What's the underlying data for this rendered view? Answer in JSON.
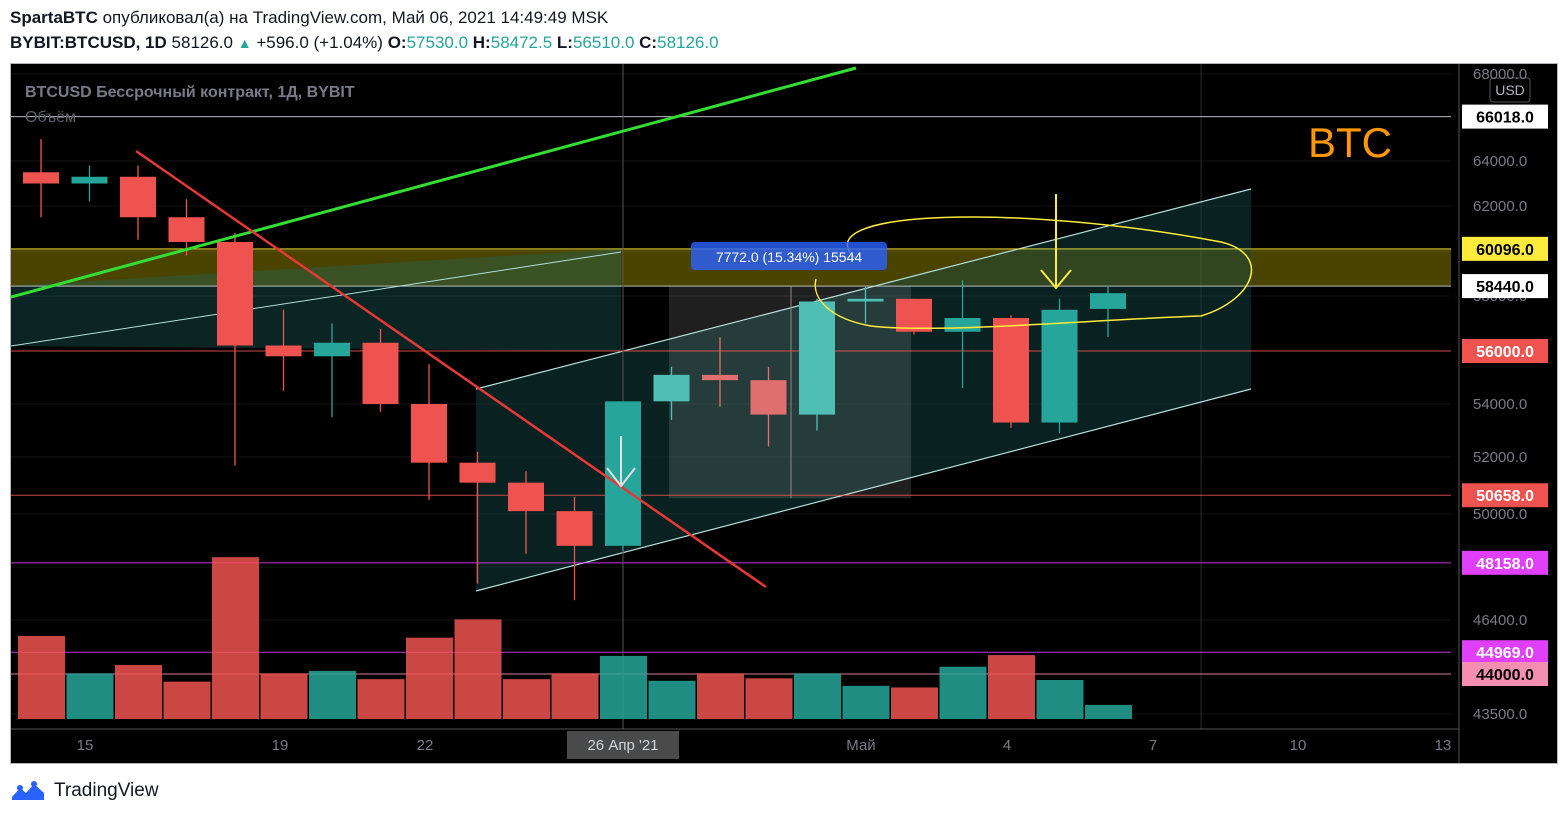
{
  "header": {
    "author": "SpartaBTC",
    "published_text": "опубликовал(а) на TradingView.com, Май 06, 2021 14:49:49 MSK",
    "symbol": "BYBIT:BTCUSD, 1D",
    "last": "58126.0",
    "change": "+596.0 (+1.04%)",
    "o_label": "O:",
    "o": "57530.0",
    "h_label": "H:",
    "h": "58472.5",
    "l_label": "L:",
    "l": "56510.0",
    "c_label": "C:",
    "c": "58126.0"
  },
  "chart": {
    "title": "BTCUSD Бессрочный контракт, 1Д, BYBIT",
    "volume_label": "Объём",
    "currency": "USD",
    "annotation": "BTC",
    "measure_label": "7772.0 (15.34%) 15544",
    "crosshair_label": "26 Апр '21"
  },
  "footer": {
    "brand": "TradingView"
  },
  "colors": {
    "up": "#26a69a",
    "down": "#ef5350",
    "green_line": "#2ecc40",
    "red_line": "#e53935",
    "yellow": "#ffeb3b",
    "orange": "#ff9800"
  },
  "chart_data": {
    "type": "candlestick",
    "title": "BTCUSD Бессрочный контракт, 1Д, BYBIT",
    "x_ticks": [
      "15",
      "19",
      "22",
      "26 Апр '21",
      "Май",
      "4",
      "7",
      "10",
      "13"
    ],
    "y_ticks": [
      68000,
      66000,
      64000,
      62000,
      60000,
      58000,
      56000,
      54000,
      52000,
      50000,
      48000,
      46400,
      44000,
      43500
    ],
    "y_tick_labels": [
      "68000.0",
      "66000.0",
      "64000.0",
      "62000.0",
      "60000.0",
      "58000.0",
      "56000.0",
      "54000.0",
      "52000.0",
      "50000.0",
      "48000.0",
      "46400.0",
      "44000.0",
      "43500.0"
    ],
    "price_levels": [
      {
        "value": 66018,
        "label": "66018.0",
        "kind": "white"
      },
      {
        "value": 60096,
        "label": "60096.0",
        "kind": "yellow"
      },
      {
        "value": 58440,
        "label": "58440.0",
        "kind": "white"
      },
      {
        "value": 56000,
        "label": "56000.0",
        "kind": "red"
      },
      {
        "value": 50658,
        "label": "50658.0",
        "kind": "red"
      },
      {
        "value": 48158,
        "label": "48158.0",
        "kind": "magenta"
      },
      {
        "value": 44969,
        "label": "44969.0",
        "kind": "magenta"
      },
      {
        "value": 44000,
        "label": "44000.0",
        "kind": "pink"
      }
    ],
    "candles": [
      {
        "date": "Apr 14",
        "o": 63500,
        "h": 65000,
        "l": 61500,
        "c": 63000
      },
      {
        "date": "Apr 15",
        "o": 63000,
        "h": 63800,
        "l": 62200,
        "c": 63300
      },
      {
        "date": "Apr 16",
        "o": 63300,
        "h": 63800,
        "l": 60500,
        "c": 61500
      },
      {
        "date": "Apr 17",
        "o": 61500,
        "h": 62300,
        "l": 59800,
        "c": 60400
      },
      {
        "date": "Apr 18",
        "o": 60400,
        "h": 60800,
        "l": 51700,
        "c": 56200
      },
      {
        "date": "Apr 19",
        "o": 56200,
        "h": 57500,
        "l": 54500,
        "c": 55800
      },
      {
        "date": "Apr 20",
        "o": 55800,
        "h": 57000,
        "l": 53500,
        "c": 56300
      },
      {
        "date": "Apr 21",
        "o": 56300,
        "h": 56800,
        "l": 53700,
        "c": 54000
      },
      {
        "date": "Apr 22",
        "o": 54000,
        "h": 55500,
        "l": 50500,
        "c": 51800
      },
      {
        "date": "Apr 23",
        "o": 51800,
        "h": 52200,
        "l": 47500,
        "c": 51100
      },
      {
        "date": "Apr 24",
        "o": 51100,
        "h": 51500,
        "l": 48500,
        "c": 50100
      },
      {
        "date": "Apr 25",
        "o": 50100,
        "h": 50600,
        "l": 47000,
        "c": 48800
      },
      {
        "date": "Apr 26",
        "o": 48800,
        "h": 54100,
        "l": 48600,
        "c": 54100
      },
      {
        "date": "Apr 27",
        "o": 54100,
        "h": 55400,
        "l": 53400,
        "c": 55100
      },
      {
        "date": "Apr 28",
        "o": 55100,
        "h": 56500,
        "l": 53900,
        "c": 54900
      },
      {
        "date": "Apr 29",
        "o": 54900,
        "h": 55400,
        "l": 52400,
        "c": 53600
      },
      {
        "date": "Apr 30",
        "o": 53600,
        "h": 57900,
        "l": 53000,
        "c": 57800
      },
      {
        "date": "May 1",
        "o": 57800,
        "h": 58400,
        "l": 57000,
        "c": 57900
      },
      {
        "date": "May 2",
        "o": 57900,
        "h": 57900,
        "l": 56600,
        "c": 56700
      },
      {
        "date": "May 3",
        "o": 56700,
        "h": 58700,
        "l": 54600,
        "c": 57200
      },
      {
        "date": "May 4",
        "o": 57200,
        "h": 57300,
        "l": 53100,
        "c": 53300
      },
      {
        "date": "May 5",
        "o": 53300,
        "h": 57900,
        "l": 52900,
        "c": 57500
      },
      {
        "date": "May 6",
        "o": 57530,
        "h": 58472.5,
        "l": 56510,
        "c": 58126
      }
    ],
    "volume": [
      {
        "v": 100,
        "up": false
      },
      {
        "v": 55,
        "up": true
      },
      {
        "v": 65,
        "up": false
      },
      {
        "v": 45,
        "up": false
      },
      {
        "v": 195,
        "up": false
      },
      {
        "v": 55,
        "up": false
      },
      {
        "v": 58,
        "up": true
      },
      {
        "v": 48,
        "up": false
      },
      {
        "v": 98,
        "up": false
      },
      {
        "v": 120,
        "up": false
      },
      {
        "v": 48,
        "up": false
      },
      {
        "v": 55,
        "up": false
      },
      {
        "v": 76,
        "up": true
      },
      {
        "v": 46,
        "up": true
      },
      {
        "v": 55,
        "up": false
      },
      {
        "v": 49,
        "up": false
      },
      {
        "v": 55,
        "up": true
      },
      {
        "v": 40,
        "up": true
      },
      {
        "v": 38,
        "up": false
      },
      {
        "v": 63,
        "up": true
      },
      {
        "v": 77,
        "up": false
      },
      {
        "v": 47,
        "up": true
      },
      {
        "v": 17,
        "up": true
      }
    ]
  }
}
